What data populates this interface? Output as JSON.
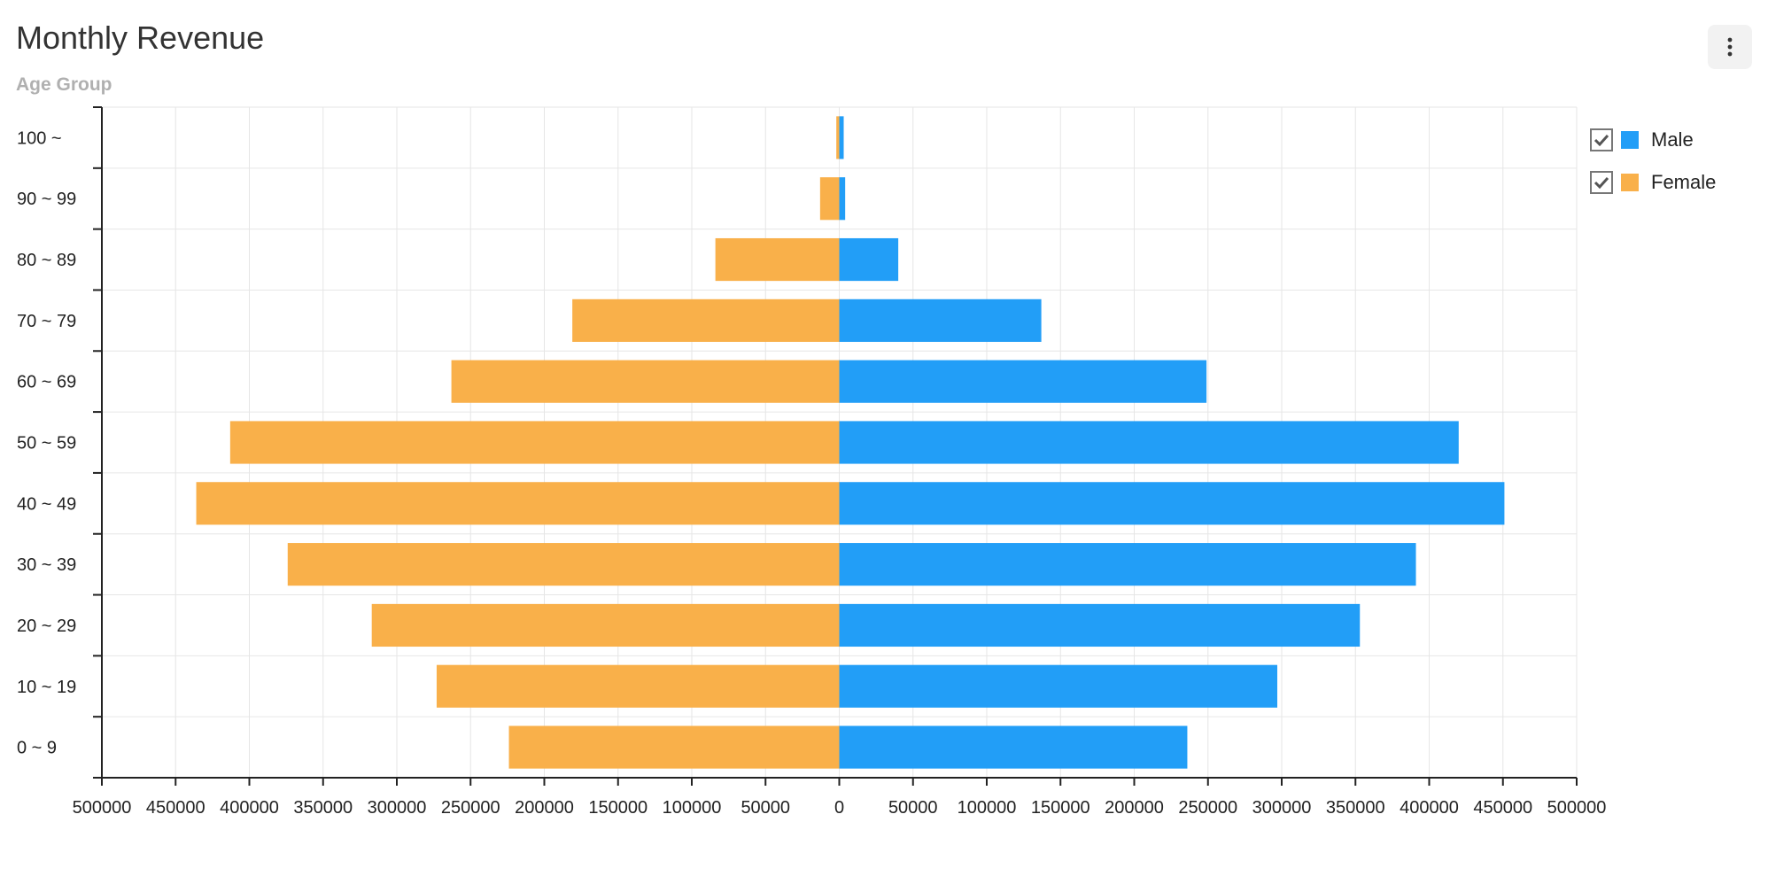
{
  "header": {
    "title": "Monthly Revenue",
    "menu_icon": "more-vertical-icon"
  },
  "chart_data": {
    "type": "bar",
    "orientation": "horizontal-diverging",
    "title": "Monthly Revenue",
    "ylabel": "Age Group",
    "xlabel": "",
    "categories": [
      "100 ~",
      "90 ~ 99",
      "80 ~ 89",
      "70 ~ 79",
      "60 ~ 69",
      "50 ~ 59",
      "40 ~ 49",
      "30 ~ 39",
      "20 ~ 29",
      "10 ~ 19",
      "0 ~ 9"
    ],
    "series": [
      {
        "name": "Male",
        "color": "#229ef7",
        "values": [
          3000,
          4000,
          40000,
          137000,
          249000,
          420000,
          451000,
          391000,
          353000,
          297000,
          236000
        ]
      },
      {
        "name": "Female",
        "color": "#f9b04a",
        "values": [
          2000,
          13000,
          84000,
          181000,
          263000,
          413000,
          436000,
          374000,
          317000,
          273000,
          224000
        ]
      }
    ],
    "xlim": [
      -500000,
      500000
    ],
    "x_ticks": [
      "500000",
      "450000",
      "400000",
      "350000",
      "300000",
      "250000",
      "200000",
      "150000",
      "100000",
      "50000",
      "0",
      "50000",
      "100000",
      "150000",
      "200000",
      "250000",
      "300000",
      "350000",
      "400000",
      "450000",
      "500000"
    ],
    "grid": true,
    "legend_position": "top-right"
  }
}
